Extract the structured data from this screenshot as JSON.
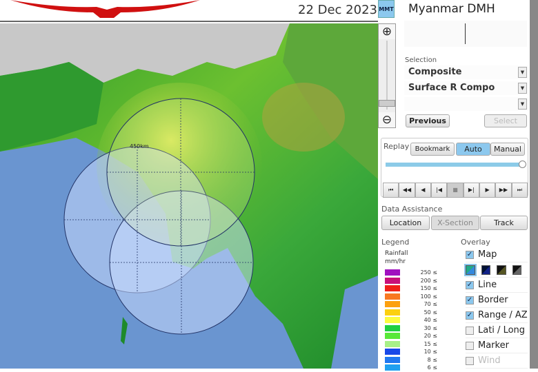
{
  "header": {
    "date": "22 Dec 2023",
    "timezone": "MMT"
  },
  "map": {
    "range_label": "450km"
  },
  "panel": {
    "station": "Myanmar DMH",
    "selection_label": "Selection",
    "selections": [
      "Composite",
      "Surface R Compo",
      ""
    ],
    "previous": "Previous",
    "select": "Select"
  },
  "replay": {
    "label": "Replay",
    "bookmark": "Bookmark",
    "auto": "Auto",
    "manual": "Manual",
    "progress_percent": 100,
    "controls": [
      "first",
      "fast-back",
      "back",
      "step-back",
      "stop",
      "step-forward",
      "play",
      "fast-forward",
      "last"
    ]
  },
  "assist": {
    "label": "Data Assistance",
    "location": "Location",
    "xsection": "X-Section",
    "track": "Track"
  },
  "legend": {
    "label": "Legend",
    "title1": "Rainfall",
    "title2": "mm/hr",
    "items": [
      {
        "v": "250 ≤",
        "c": "#a010c0"
      },
      {
        "v": "200 ≤",
        "c": "#c8107a"
      },
      {
        "v": "150 ≤",
        "c": "#f02018"
      },
      {
        "v": "100 ≤",
        "c": "#f87820"
      },
      {
        "v": "70 ≤",
        "c": "#fca010"
      },
      {
        "v": "50 ≤",
        "c": "#fcd010"
      },
      {
        "v": "40 ≤",
        "c": "#fcfc40"
      },
      {
        "v": "30 ≤",
        "c": "#20d040"
      },
      {
        "v": "20 ≤",
        "c": "#58e838"
      },
      {
        "v": "15 ≤",
        "c": "#a8f088"
      },
      {
        "v": "10 ≤",
        "c": "#1848e8"
      },
      {
        "v": "8 ≤",
        "c": "#2078f0"
      },
      {
        "v": "6 ≤",
        "c": "#20a0f0"
      }
    ]
  },
  "overlay": {
    "label": "Overlay",
    "items": [
      {
        "label": "Map",
        "checked": true
      },
      {
        "label": "Line",
        "checked": true
      },
      {
        "label": "Border",
        "checked": true
      },
      {
        "label": "Range / AZ",
        "checked": true
      },
      {
        "label": "Lati / Long",
        "checked": false
      },
      {
        "label": "Marker",
        "checked": false
      },
      {
        "label": "Wind",
        "checked": false,
        "disabled": true
      }
    ],
    "map_styles": [
      "color",
      "dark-blue",
      "dark-olive",
      "dark-gray"
    ]
  }
}
